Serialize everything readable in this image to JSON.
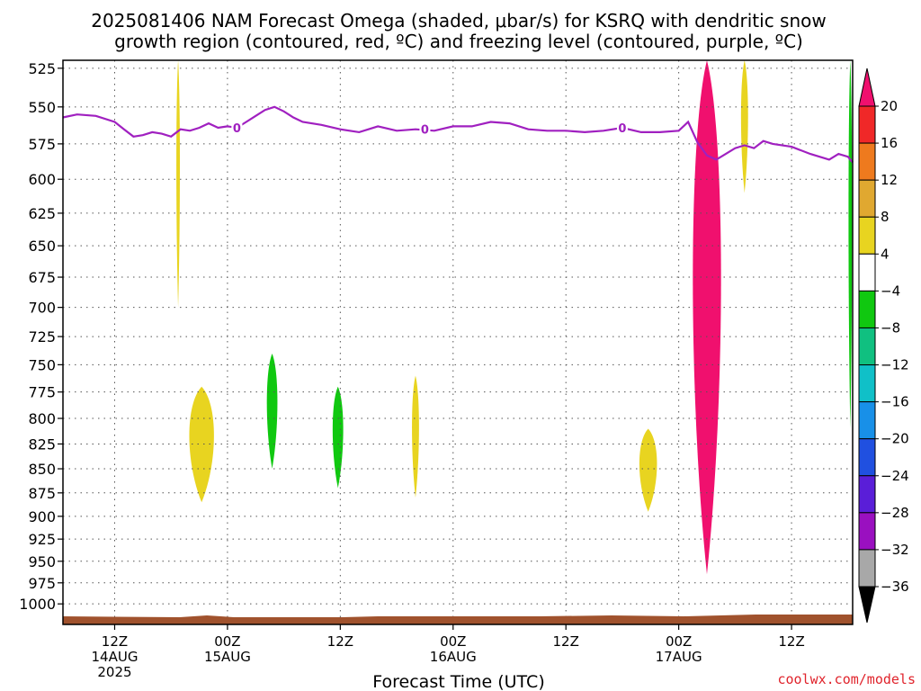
{
  "title": {
    "line1": "2025081406 NAM Forecast Omega (shaded, μbar/s) for KSRQ with dendritic snow",
    "line2": "growth region (contoured, red, ºC) and freezing level (contoured, purple, ºC)"
  },
  "credit": "coolwx.com/models",
  "chart_data": {
    "type": "heatmap",
    "title": "2025081406 NAM Forecast Omega (shaded, μbar/s) for KSRQ with dendritic snow growth region (contoured, red, ºC) and freezing level (contoured, purple, ºC)",
    "xlabel": "Forecast Time (UTC)",
    "ylabel": "",
    "y_axis": {
      "unit": "mb",
      "scale": "log-pressure, inverted",
      "ylim": [
        1025,
        520
      ],
      "ticks": [
        525,
        550,
        575,
        600,
        625,
        650,
        675,
        700,
        725,
        750,
        775,
        800,
        825,
        850,
        875,
        900,
        925,
        950,
        975,
        1000
      ]
    },
    "x_axis": {
      "unit": "hours since 2025-08-14 00Z",
      "xlim": [
        6.5,
        90.5
      ],
      "ticks": [
        {
          "hour": 12,
          "label": "12Z",
          "date": "14AUG",
          "year": "2025"
        },
        {
          "hour": 24,
          "label": "00Z",
          "date": "15AUG",
          "year": ""
        },
        {
          "hour": 36,
          "label": "12Z",
          "date": "",
          "year": ""
        },
        {
          "hour": 48,
          "label": "00Z",
          "date": "16AUG",
          "year": ""
        },
        {
          "hour": 60,
          "label": "12Z",
          "date": "",
          "year": ""
        },
        {
          "hour": 72,
          "label": "00Z",
          "date": "17AUG",
          "year": ""
        },
        {
          "hour": 84,
          "label": "12Z",
          "date": "",
          "year": ""
        }
      ]
    },
    "grid": true,
    "colorbar": {
      "position": "right",
      "levels": [
        20,
        16,
        12,
        8,
        4,
        -4,
        -8,
        -12,
        -16,
        -20,
        -24,
        -28,
        -32,
        -36
      ],
      "colors": [
        "#f0106e",
        "#f02828",
        "#ee7a1e",
        "#e0a830",
        "#e8d420",
        "#ffffff",
        "#10c810",
        "#10c080",
        "#10c0c8",
        "#1890e8",
        "#2050e0",
        "#5a1ed8",
        "#9a10c0",
        "#a8a8a8",
        "#000000"
      ]
    },
    "freezing_level": {
      "label": "0",
      "color": "#a020c0",
      "x": [
        6.5,
        8,
        10,
        12,
        13,
        14,
        15,
        16,
        17,
        18,
        19,
        20,
        21,
        22,
        23,
        24,
        25,
        26,
        27,
        28,
        29,
        30,
        31,
        32,
        34,
        36,
        38,
        40,
        42,
        44,
        46,
        48,
        50,
        52,
        54,
        56,
        58,
        60,
        62,
        64,
        66,
        68,
        70,
        72,
        73,
        74,
        75,
        76,
        77,
        78,
        79,
        80,
        81,
        82,
        84,
        86,
        88,
        89,
        90,
        90.5
      ],
      "y": [
        557,
        555,
        556,
        560,
        565,
        570,
        569,
        567,
        568,
        570,
        565,
        566,
        564,
        561,
        564,
        563,
        564,
        560,
        556,
        552,
        550,
        553,
        557,
        560,
        562,
        565,
        567,
        563,
        566,
        565,
        566,
        563,
        563,
        560,
        561,
        565,
        566,
        566,
        567,
        566,
        564,
        567,
        567,
        566,
        560,
        574,
        583,
        586,
        582,
        578,
        576,
        578,
        573,
        575,
        577,
        582,
        586,
        582,
        584,
        588
      ]
    },
    "shaded_regions": [
      {
        "value_bin": "4 to 8",
        "color": "#e8d420",
        "hour_min": 18.5,
        "hour_max": 19,
        "p_top": 520,
        "p_bottom": 700
      },
      {
        "value_bin": "4 to 8",
        "color": "#e8d420",
        "hour_min": 19.5,
        "hour_max": 23,
        "p_top": 770,
        "p_bottom": 885
      },
      {
        "value_bin": "-4 to -8",
        "color": "#10c810",
        "hour_min": 28,
        "hour_max": 29.5,
        "p_top": 740,
        "p_bottom": 850
      },
      {
        "value_bin": "-4 to -8",
        "color": "#10c810",
        "hour_min": 35,
        "hour_max": 36.5,
        "p_top": 770,
        "p_bottom": 870
      },
      {
        "value_bin": "4 to 8",
        "color": "#e8d420",
        "hour_min": 43.5,
        "hour_max": 44.5,
        "p_top": 760,
        "p_bottom": 880
      },
      {
        "value_bin": "4 to 8",
        "color": "#e8d420",
        "hour_min": 67.5,
        "hour_max": 70,
        "p_top": 810,
        "p_bottom": 895
      },
      {
        "value_bin": "8 to 20+",
        "color": "#f0106e",
        "hour_min": 73,
        "hour_max": 77,
        "p_top": 520,
        "p_bottom": 965
      },
      {
        "value_bin": "4 to 8",
        "color": "#e8d420",
        "hour_min": 78.5,
        "hour_max": 79.5,
        "p_top": 520,
        "p_bottom": 610
      },
      {
        "value_bin": "-4 to -8",
        "color": "#10c810",
        "hour_min": 90,
        "hour_max": 90.5,
        "p_top": 520,
        "p_bottom": 810
      }
    ]
  }
}
